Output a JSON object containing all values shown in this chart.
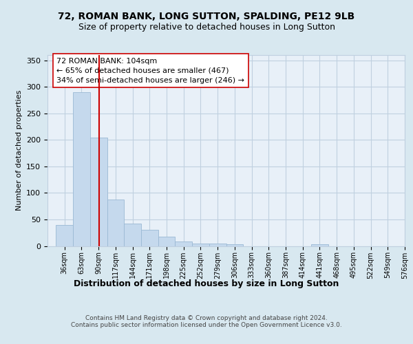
{
  "title": "72, ROMAN BANK, LONG SUTTON, SPALDING, PE12 9LB",
  "subtitle": "Size of property relative to detached houses in Long Sutton",
  "xlabel": "Distribution of detached houses by size in Long Sutton",
  "ylabel": "Number of detached properties",
  "bin_labels": [
    "36sqm",
    "63sqm",
    "90sqm",
    "117sqm",
    "144sqm",
    "171sqm",
    "198sqm",
    "225sqm",
    "252sqm",
    "279sqm",
    "306sqm",
    "333sqm",
    "360sqm",
    "387sqm",
    "414sqm",
    "441sqm",
    "468sqm",
    "495sqm",
    "522sqm",
    "549sqm",
    "576sqm"
  ],
  "bin_edges": [
    36,
    63,
    90,
    117,
    144,
    171,
    198,
    225,
    252,
    279,
    306,
    333,
    360,
    387,
    414,
    441,
    468,
    495,
    522,
    549,
    576
  ],
  "bar_heights": [
    40,
    290,
    204,
    87,
    42,
    30,
    17,
    8,
    5,
    4,
    3,
    0,
    0,
    0,
    0,
    3,
    0,
    0,
    0,
    0,
    0
  ],
  "bar_color": "#c5d9ed",
  "bar_edge_color": "#9ab8d4",
  "property_size": 104,
  "vline_color": "#cc0000",
  "annotation_text": "72 ROMAN BANK: 104sqm\n← 65% of detached houses are smaller (467)\n34% of semi-detached houses are larger (246) →",
  "annotation_box_color": "#ffffff",
  "annotation_box_edge": "#cc0000",
  "ylim": [
    0,
    360
  ],
  "yticks": [
    0,
    50,
    100,
    150,
    200,
    250,
    300,
    350
  ],
  "grid_color": "#c0d0e0",
  "background_color": "#d8e8f0",
  "plot_bg_color": "#e8f0f8",
  "footer": "Contains HM Land Registry data © Crown copyright and database right 2024.\nContains public sector information licensed under the Open Government Licence v3.0.",
  "title_fontsize": 10,
  "subtitle_fontsize": 9,
  "xlabel_fontsize": 9,
  "ylabel_fontsize": 8,
  "annotation_fontsize": 8,
  "footer_fontsize": 6.5
}
